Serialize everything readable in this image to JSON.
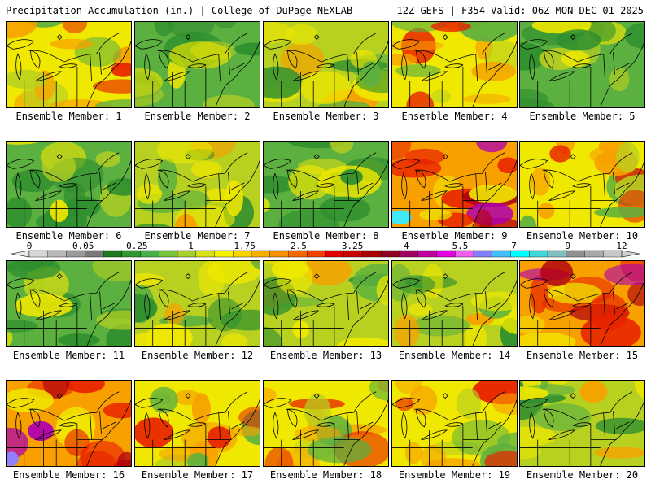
{
  "header": {
    "title_left": "Precipitation Accumulation (in.) | College of DuPage NEXLAB",
    "title_right": "12Z GEFS | F354 Valid: 06Z MON DEC 01 2025"
  },
  "caption_prefix": "Ensemble Member: ",
  "members": [
    {
      "label": "Ensemble Member: 1",
      "tone": "wet"
    },
    {
      "label": "Ensemble Member: 2",
      "tone": "dry"
    },
    {
      "label": "Ensemble Member: 3",
      "tone": "mid"
    },
    {
      "label": "Ensemble Member: 4",
      "tone": "wet"
    },
    {
      "label": "Ensemble Member: 5",
      "tone": "dry"
    },
    {
      "label": "Ensemble Member: 6",
      "tone": "dry"
    },
    {
      "label": "Ensemble Member: 7",
      "tone": "mid"
    },
    {
      "label": "Ensemble Member: 8",
      "tone": "dry"
    },
    {
      "label": "Ensemble Member: 9",
      "tone": "verywet"
    },
    {
      "label": "Ensemble Member: 10",
      "tone": "wet"
    },
    {
      "label": "Ensemble Member: 11",
      "tone": "dry"
    },
    {
      "label": "Ensemble Member: 12",
      "tone": "mid"
    },
    {
      "label": "Ensemble Member: 13",
      "tone": "mid"
    },
    {
      "label": "Ensemble Member: 14",
      "tone": "mid"
    },
    {
      "label": "Ensemble Member: 15",
      "tone": "verywet"
    },
    {
      "label": "Ensemble Member: 16",
      "tone": "verywet"
    },
    {
      "label": "Ensemble Member: 17",
      "tone": "wet"
    },
    {
      "label": "Ensemble Member: 18",
      "tone": "wet"
    },
    {
      "label": "Ensemble Member: 19",
      "tone": "wet"
    },
    {
      "label": "Ensemble Member: 20",
      "tone": "mid"
    }
  ],
  "colorbar": {
    "labels": [
      "0",
      "0.05",
      "0.25",
      "1",
      "1.75",
      "2.5",
      "3.25",
      "4",
      "5.5",
      "7",
      "9",
      "12"
    ],
    "colors": [
      "#d8d8d8",
      "#b8b8b8",
      "#9a9a9a",
      "#7a7a7a",
      "#1f7a1f",
      "#2e9a2e",
      "#48b048",
      "#76c43a",
      "#a8d02c",
      "#d8e018",
      "#f4f000",
      "#f8d400",
      "#f8b000",
      "#f89000",
      "#f86800",
      "#f04000",
      "#e00000",
      "#c80000",
      "#a80000",
      "#900020",
      "#a00060",
      "#c000a0",
      "#e000e0",
      "#f060f0",
      "#8080ff",
      "#40c0ff",
      "#00ffff",
      "#40d8d8",
      "#80c0c0",
      "#909090",
      "#a8a8a8",
      "#c8c8c8"
    ]
  },
  "palette": {
    "dark_green": "#2f8f2f",
    "green": "#5cb040",
    "yellow_green": "#b8d020",
    "yellow": "#f0e800",
    "orange": "#f8a000",
    "red": "#e82000",
    "dark_red": "#b00010",
    "magenta": "#b000b0",
    "cyan": "#40e8f8",
    "outline": "#000000"
  }
}
